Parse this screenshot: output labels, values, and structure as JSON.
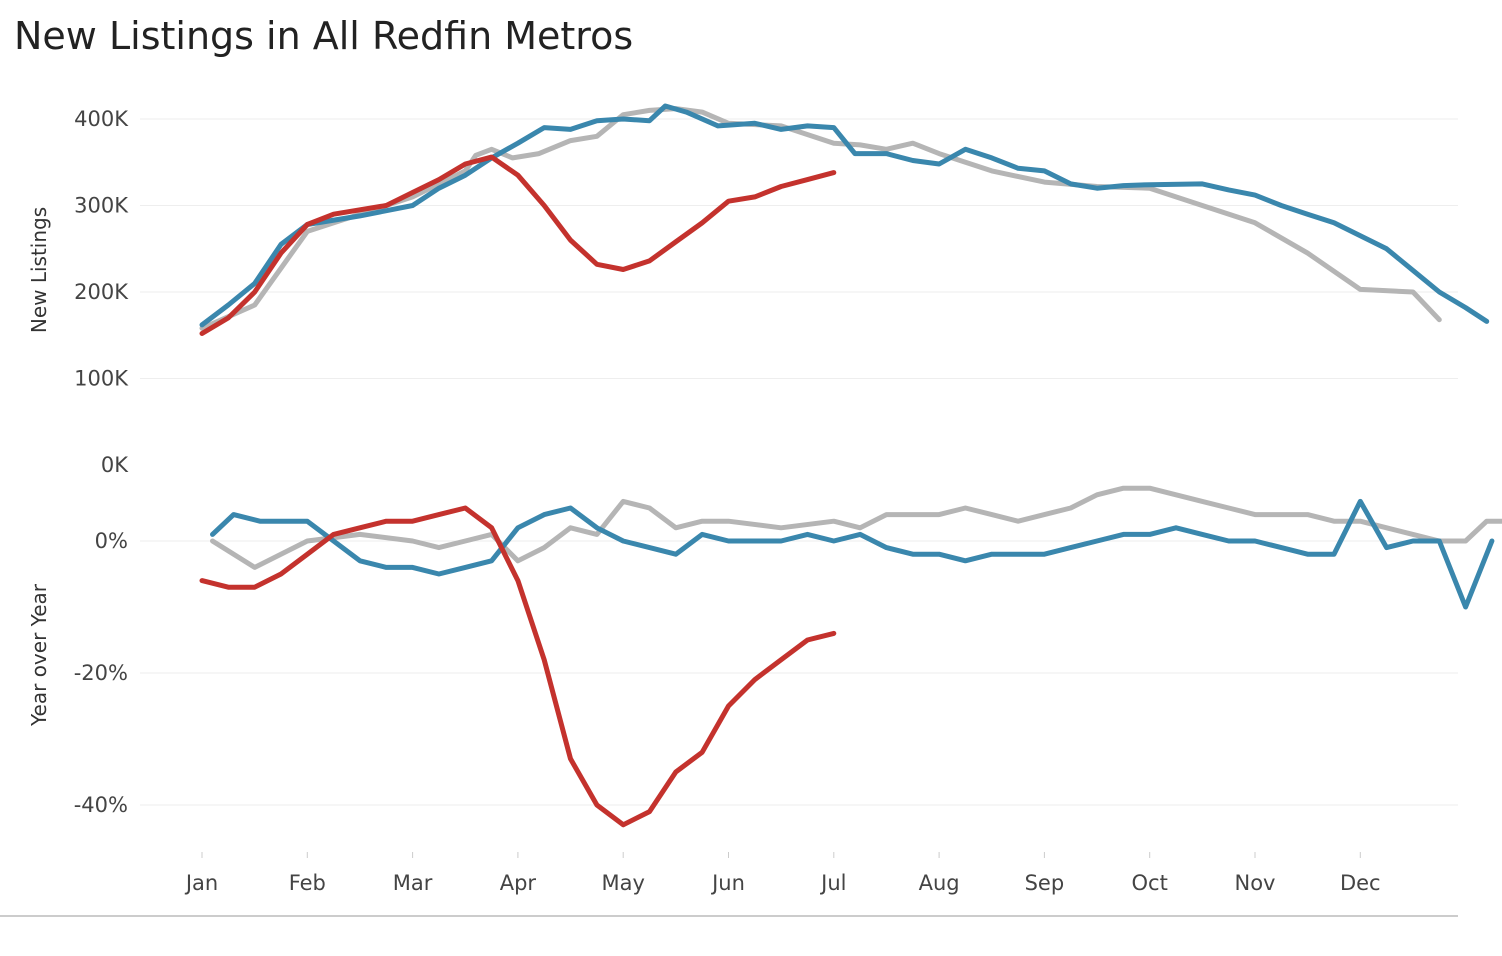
{
  "title": "New Listings in  All Redfin Metros",
  "chart_data": [
    {
      "type": "line",
      "ylabel": "New Listings",
      "xlabel": "",
      "ylim": [
        0,
        420000
      ],
      "yticks": [
        {
          "value": 400000,
          "label": "400K"
        },
        {
          "value": 300000,
          "label": "300K"
        },
        {
          "value": 200000,
          "label": "200K"
        },
        {
          "value": 100000,
          "label": "100K"
        },
        {
          "value": 0,
          "label": "0K"
        }
      ],
      "x_labels": [
        "Jan",
        "Feb",
        "Mar",
        "Apr",
        "May",
        "Jun",
        "Jul",
        "Aug",
        "Sep",
        "Oct",
        "Nov",
        "Dec"
      ],
      "grid": true,
      "series": [
        {
          "color": "#b5b5b5",
          "points": [
            [
              0,
              158000
            ],
            [
              0.5,
              185000
            ],
            [
              1,
              270000
            ],
            [
              1.5,
              290000
            ],
            [
              2,
              310000
            ],
            [
              2.5,
              340000
            ],
            [
              2.6,
              358000
            ],
            [
              2.75,
              365000
            ],
            [
              2.95,
              355000
            ],
            [
              3.2,
              360000
            ],
            [
              3.5,
              375000
            ],
            [
              3.75,
              380000
            ],
            [
              4,
              405000
            ],
            [
              4.25,
              410000
            ],
            [
              4.5,
              412000
            ],
            [
              4.75,
              408000
            ],
            [
              5,
              395000
            ],
            [
              5.5,
              392000
            ],
            [
              6,
              372000
            ],
            [
              6.25,
              370000
            ],
            [
              6.5,
              365000
            ],
            [
              6.75,
              372000
            ],
            [
              7,
              360000
            ],
            [
              7.5,
              340000
            ],
            [
              8,
              327000
            ],
            [
              8.5,
              322000
            ],
            [
              9,
              320000
            ],
            [
              9.5,
              300000
            ],
            [
              10,
              280000
            ],
            [
              10.5,
              245000
            ],
            [
              11,
              203000
            ],
            [
              11.5,
              200000
            ],
            [
              11.75,
              168000
            ]
          ]
        },
        {
          "color": "#3a87ad",
          "points": [
            [
              0,
              162000
            ],
            [
              0.25,
              185000
            ],
            [
              0.5,
              210000
            ],
            [
              0.75,
              255000
            ],
            [
              1,
              278000
            ],
            [
              1.5,
              288000
            ],
            [
              2,
              300000
            ],
            [
              2.25,
              320000
            ],
            [
              2.5,
              335000
            ],
            [
              2.75,
              355000
            ],
            [
              3,
              372000
            ],
            [
              3.25,
              390000
            ],
            [
              3.5,
              388000
            ],
            [
              3.75,
              398000
            ],
            [
              4,
              400000
            ],
            [
              4.25,
              398000
            ],
            [
              4.4,
              415000
            ],
            [
              4.6,
              408000
            ],
            [
              4.9,
              392000
            ],
            [
              5.25,
              395000
            ],
            [
              5.5,
              388000
            ],
            [
              5.75,
              392000
            ],
            [
              6,
              390000
            ],
            [
              6.2,
              360000
            ],
            [
              6.5,
              360000
            ],
            [
              6.75,
              352000
            ],
            [
              7,
              348000
            ],
            [
              7.25,
              365000
            ],
            [
              7.5,
              355000
            ],
            [
              7.75,
              343000
            ],
            [
              8,
              340000
            ],
            [
              8.25,
              325000
            ],
            [
              8.5,
              320000
            ],
            [
              8.75,
              323000
            ],
            [
              9,
              324000
            ],
            [
              9.5,
              325000
            ],
            [
              9.75,
              318000
            ],
            [
              10,
              312000
            ],
            [
              10.25,
              300000
            ],
            [
              10.5,
              290000
            ],
            [
              10.75,
              280000
            ],
            [
              11,
              265000
            ],
            [
              11.25,
              250000
            ],
            [
              11.5,
              225000
            ],
            [
              11.75,
              200000
            ],
            [
              12,
              182000
            ],
            [
              12.2,
              166000
            ]
          ]
        },
        {
          "color": "#c4322d",
          "points": [
            [
              0,
              152000
            ],
            [
              0.25,
              170000
            ],
            [
              0.5,
              200000
            ],
            [
              0.75,
              245000
            ],
            [
              1,
              278000
            ],
            [
              1.25,
              290000
            ],
            [
              1.5,
              295000
            ],
            [
              1.75,
              300000
            ],
            [
              2,
              315000
            ],
            [
              2.25,
              330000
            ],
            [
              2.5,
              348000
            ],
            [
              2.75,
              356000
            ],
            [
              3,
              335000
            ],
            [
              3.25,
              300000
            ],
            [
              3.5,
              260000
            ],
            [
              3.75,
              232000
            ],
            [
              4,
              226000
            ],
            [
              4.25,
              236000
            ],
            [
              4.5,
              258000
            ],
            [
              4.75,
              280000
            ],
            [
              5,
              305000
            ],
            [
              5.25,
              310000
            ],
            [
              5.5,
              322000
            ],
            [
              5.75,
              330000
            ],
            [
              6,
              338000
            ]
          ]
        }
      ]
    },
    {
      "type": "line",
      "ylabel": "Year over Year",
      "xlabel": "",
      "ylim": [
        -0.46,
        0.08
      ],
      "yticks": [
        {
          "value": 0,
          "label": "0%"
        },
        {
          "value": -0.2,
          "label": "-20%"
        },
        {
          "value": -0.4,
          "label": "-40%"
        }
      ],
      "x_labels": [
        "Jan",
        "Feb",
        "Mar",
        "Apr",
        "May",
        "Jun",
        "Jul",
        "Aug",
        "Sep",
        "Oct",
        "Nov",
        "Dec"
      ],
      "grid": true,
      "series": [
        {
          "color": "#b5b5b5",
          "points": [
            [
              0.1,
              0
            ],
            [
              0.5,
              -0.04
            ],
            [
              1,
              0
            ],
            [
              1.5,
              0.01
            ],
            [
              2,
              0
            ],
            [
              2.25,
              -0.01
            ],
            [
              2.5,
              0
            ],
            [
              2.75,
              0.01
            ],
            [
              3,
              -0.03
            ],
            [
              3.25,
              -0.01
            ],
            [
              3.5,
              0.02
            ],
            [
              3.75,
              0.01
            ],
            [
              4,
              0.06
            ],
            [
              4.25,
              0.05
            ],
            [
              4.5,
              0.02
            ],
            [
              4.75,
              0.03
            ],
            [
              5,
              0.03
            ],
            [
              5.5,
              0.02
            ],
            [
              6,
              0.03
            ],
            [
              6.25,
              0.02
            ],
            [
              6.5,
              0.04
            ],
            [
              6.75,
              0.04
            ],
            [
              7,
              0.04
            ],
            [
              7.25,
              0.05
            ],
            [
              7.5,
              0.04
            ],
            [
              7.75,
              0.03
            ],
            [
              8,
              0.04
            ],
            [
              8.25,
              0.05
            ],
            [
              8.5,
              0.07
            ],
            [
              8.75,
              0.08
            ],
            [
              9,
              0.08
            ],
            [
              9.5,
              0.06
            ],
            [
              9.75,
              0.05
            ],
            [
              10,
              0.04
            ],
            [
              10.25,
              0.04
            ],
            [
              10.5,
              0.04
            ],
            [
              10.75,
              0.03
            ],
            [
              11,
              0.03
            ],
            [
              11.25,
              0.02
            ],
            [
              11.5,
              0.01
            ],
            [
              11.75,
              0
            ],
            [
              12,
              0
            ],
            [
              12.2,
              0.03
            ],
            [
              12.4,
              0.03
            ]
          ]
        },
        {
          "color": "#3a87ad",
          "points": [
            [
              0.1,
              0.01
            ],
            [
              0.3,
              0.04
            ],
            [
              0.55,
              0.03
            ],
            [
              0.75,
              0.03
            ],
            [
              1,
              0.03
            ],
            [
              1.25,
              0
            ],
            [
              1.5,
              -0.03
            ],
            [
              1.75,
              -0.04
            ],
            [
              2,
              -0.04
            ],
            [
              2.25,
              -0.05
            ],
            [
              2.5,
              -0.04
            ],
            [
              2.75,
              -0.03
            ],
            [
              3,
              0.02
            ],
            [
              3.25,
              0.04
            ],
            [
              3.5,
              0.05
            ],
            [
              3.75,
              0.02
            ],
            [
              4,
              0
            ],
            [
              4.25,
              -0.01
            ],
            [
              4.5,
              -0.02
            ],
            [
              4.75,
              0.01
            ],
            [
              5,
              0
            ],
            [
              5.25,
              0
            ],
            [
              5.5,
              0
            ],
            [
              5.75,
              0.01
            ],
            [
              6,
              0
            ],
            [
              6.25,
              0.01
            ],
            [
              6.5,
              -0.01
            ],
            [
              6.75,
              -0.02
            ],
            [
              7,
              -0.02
            ],
            [
              7.25,
              -0.03
            ],
            [
              7.5,
              -0.02
            ],
            [
              7.75,
              -0.02
            ],
            [
              8,
              -0.02
            ],
            [
              8.25,
              -0.01
            ],
            [
              8.5,
              0
            ],
            [
              8.75,
              0.01
            ],
            [
              9,
              0.01
            ],
            [
              9.25,
              0.02
            ],
            [
              9.5,
              0.01
            ],
            [
              9.75,
              0
            ],
            [
              10,
              0
            ],
            [
              10.25,
              -0.01
            ],
            [
              10.5,
              -0.02
            ],
            [
              10.75,
              -0.02
            ],
            [
              11,
              0.06
            ],
            [
              11.25,
              -0.01
            ],
            [
              11.5,
              0
            ],
            [
              11.75,
              0
            ],
            [
              12,
              -0.1
            ],
            [
              12.25,
              0
            ]
          ]
        },
        {
          "color": "#c4322d",
          "points": [
            [
              0,
              -0.06
            ],
            [
              0.25,
              -0.07
            ],
            [
              0.5,
              -0.07
            ],
            [
              0.75,
              -0.05
            ],
            [
              1,
              -0.02
            ],
            [
              1.25,
              0.01
            ],
            [
              1.5,
              0.02
            ],
            [
              1.75,
              0.03
            ],
            [
              2,
              0.03
            ],
            [
              2.25,
              0.04
            ],
            [
              2.5,
              0.05
            ],
            [
              2.75,
              0.02
            ],
            [
              3,
              -0.06
            ],
            [
              3.25,
              -0.18
            ],
            [
              3.5,
              -0.33
            ],
            [
              3.75,
              -0.4
            ],
            [
              4,
              -0.43
            ],
            [
              4.25,
              -0.41
            ],
            [
              4.5,
              -0.35
            ],
            [
              4.75,
              -0.32
            ],
            [
              5,
              -0.25
            ],
            [
              5.25,
              -0.21
            ],
            [
              5.5,
              -0.18
            ],
            [
              5.75,
              -0.15
            ],
            [
              6,
              -0.14
            ]
          ]
        }
      ]
    }
  ]
}
